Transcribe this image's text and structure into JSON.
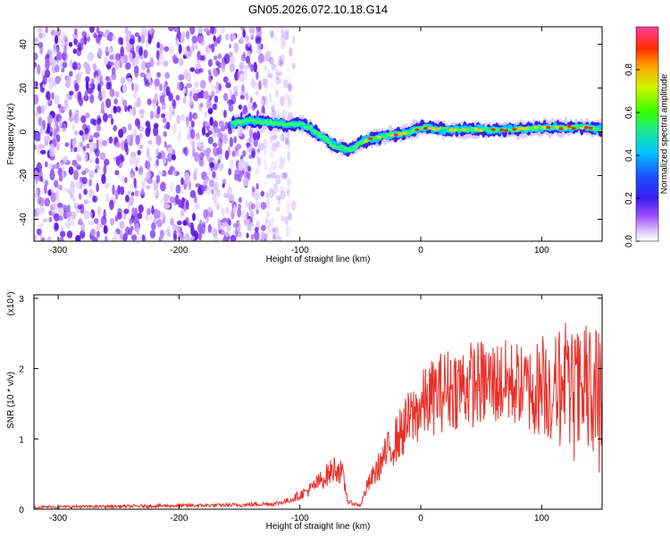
{
  "title": "GN05.2026.072.10.18.G14",
  "chart_data": [
    {
      "type": "heatmap",
      "xlabel": "Height of straight line (km)",
      "ylabel": "Frequency (Hz)",
      "xlim": [
        -320,
        150
      ],
      "ylim": [
        -50,
        48
      ],
      "xticks": [
        "-300",
        "-200",
        "-100",
        "0",
        "100"
      ],
      "xtick_values": [
        -300,
        -200,
        -100,
        0,
        100
      ],
      "yticks": [
        "40",
        "20",
        "0",
        "-20",
        "-40"
      ],
      "ytick_values": [
        40,
        20,
        0,
        -20,
        -40
      ],
      "colorbar": {
        "label": "Normalized spectral amplitude",
        "range": [
          0,
          1
        ],
        "ticks": [
          "0.0",
          "0.2",
          "0.4",
          "0.6",
          "0.8"
        ],
        "tick_values": [
          0.0,
          0.2,
          0.4,
          0.6,
          0.8
        ]
      },
      "ridge": {
        "description_height_km": [
          -155,
          -140,
          -120,
          -110,
          -100,
          -90,
          -80,
          -70,
          -60,
          -55,
          -50,
          -40,
          -30,
          -20,
          -10,
          0,
          20,
          40,
          60,
          80,
          100,
          120,
          140,
          150
        ],
        "frequency_hz": [
          4,
          5,
          4,
          3,
          4,
          1,
          -3,
          -7,
          -8,
          -7,
          -5,
          -3,
          -2,
          -1,
          0,
          2,
          1,
          1,
          1,
          1,
          2,
          2,
          2,
          1
        ]
      },
      "noise_region_km": [
        -320,
        -130
      ]
    },
    {
      "type": "line",
      "xlabel": "Height of straight line (km)",
      "ylabel": "SNR (10 * v/v)",
      "multiplier": "(x10⁴)",
      "xlim": [
        -320,
        150
      ],
      "ylim": [
        0,
        3.05
      ],
      "xticks": [
        "-300",
        "-200",
        "-100",
        "0",
        "100"
      ],
      "xtick_values": [
        -300,
        -200,
        -100,
        0,
        100
      ],
      "yticks": [
        "0",
        "1",
        "2",
        "3"
      ],
      "ytick_values": [
        0,
        1,
        2,
        3
      ],
      "series_color": "#e8312a",
      "envelope": {
        "x": [
          -320,
          -250,
          -200,
          -150,
          -120,
          -110,
          -100,
          -90,
          -80,
          -70,
          -65,
          -60,
          -55,
          -50,
          -45,
          -40,
          -30,
          -20,
          -10,
          0,
          10,
          20,
          40,
          60,
          80,
          90,
          100,
          110,
          120,
          130,
          140,
          150
        ],
        "y": [
          0.03,
          0.04,
          0.05,
          0.06,
          0.08,
          0.12,
          0.2,
          0.3,
          0.45,
          0.6,
          0.5,
          0.1,
          0.08,
          0.05,
          0.3,
          0.45,
          0.75,
          1.0,
          1.25,
          1.45,
          1.6,
          1.7,
          1.78,
          1.8,
          1.78,
          1.7,
          1.75,
          1.7,
          1.65,
          1.6,
          1.55,
          1.5
        ]
      }
    }
  ]
}
